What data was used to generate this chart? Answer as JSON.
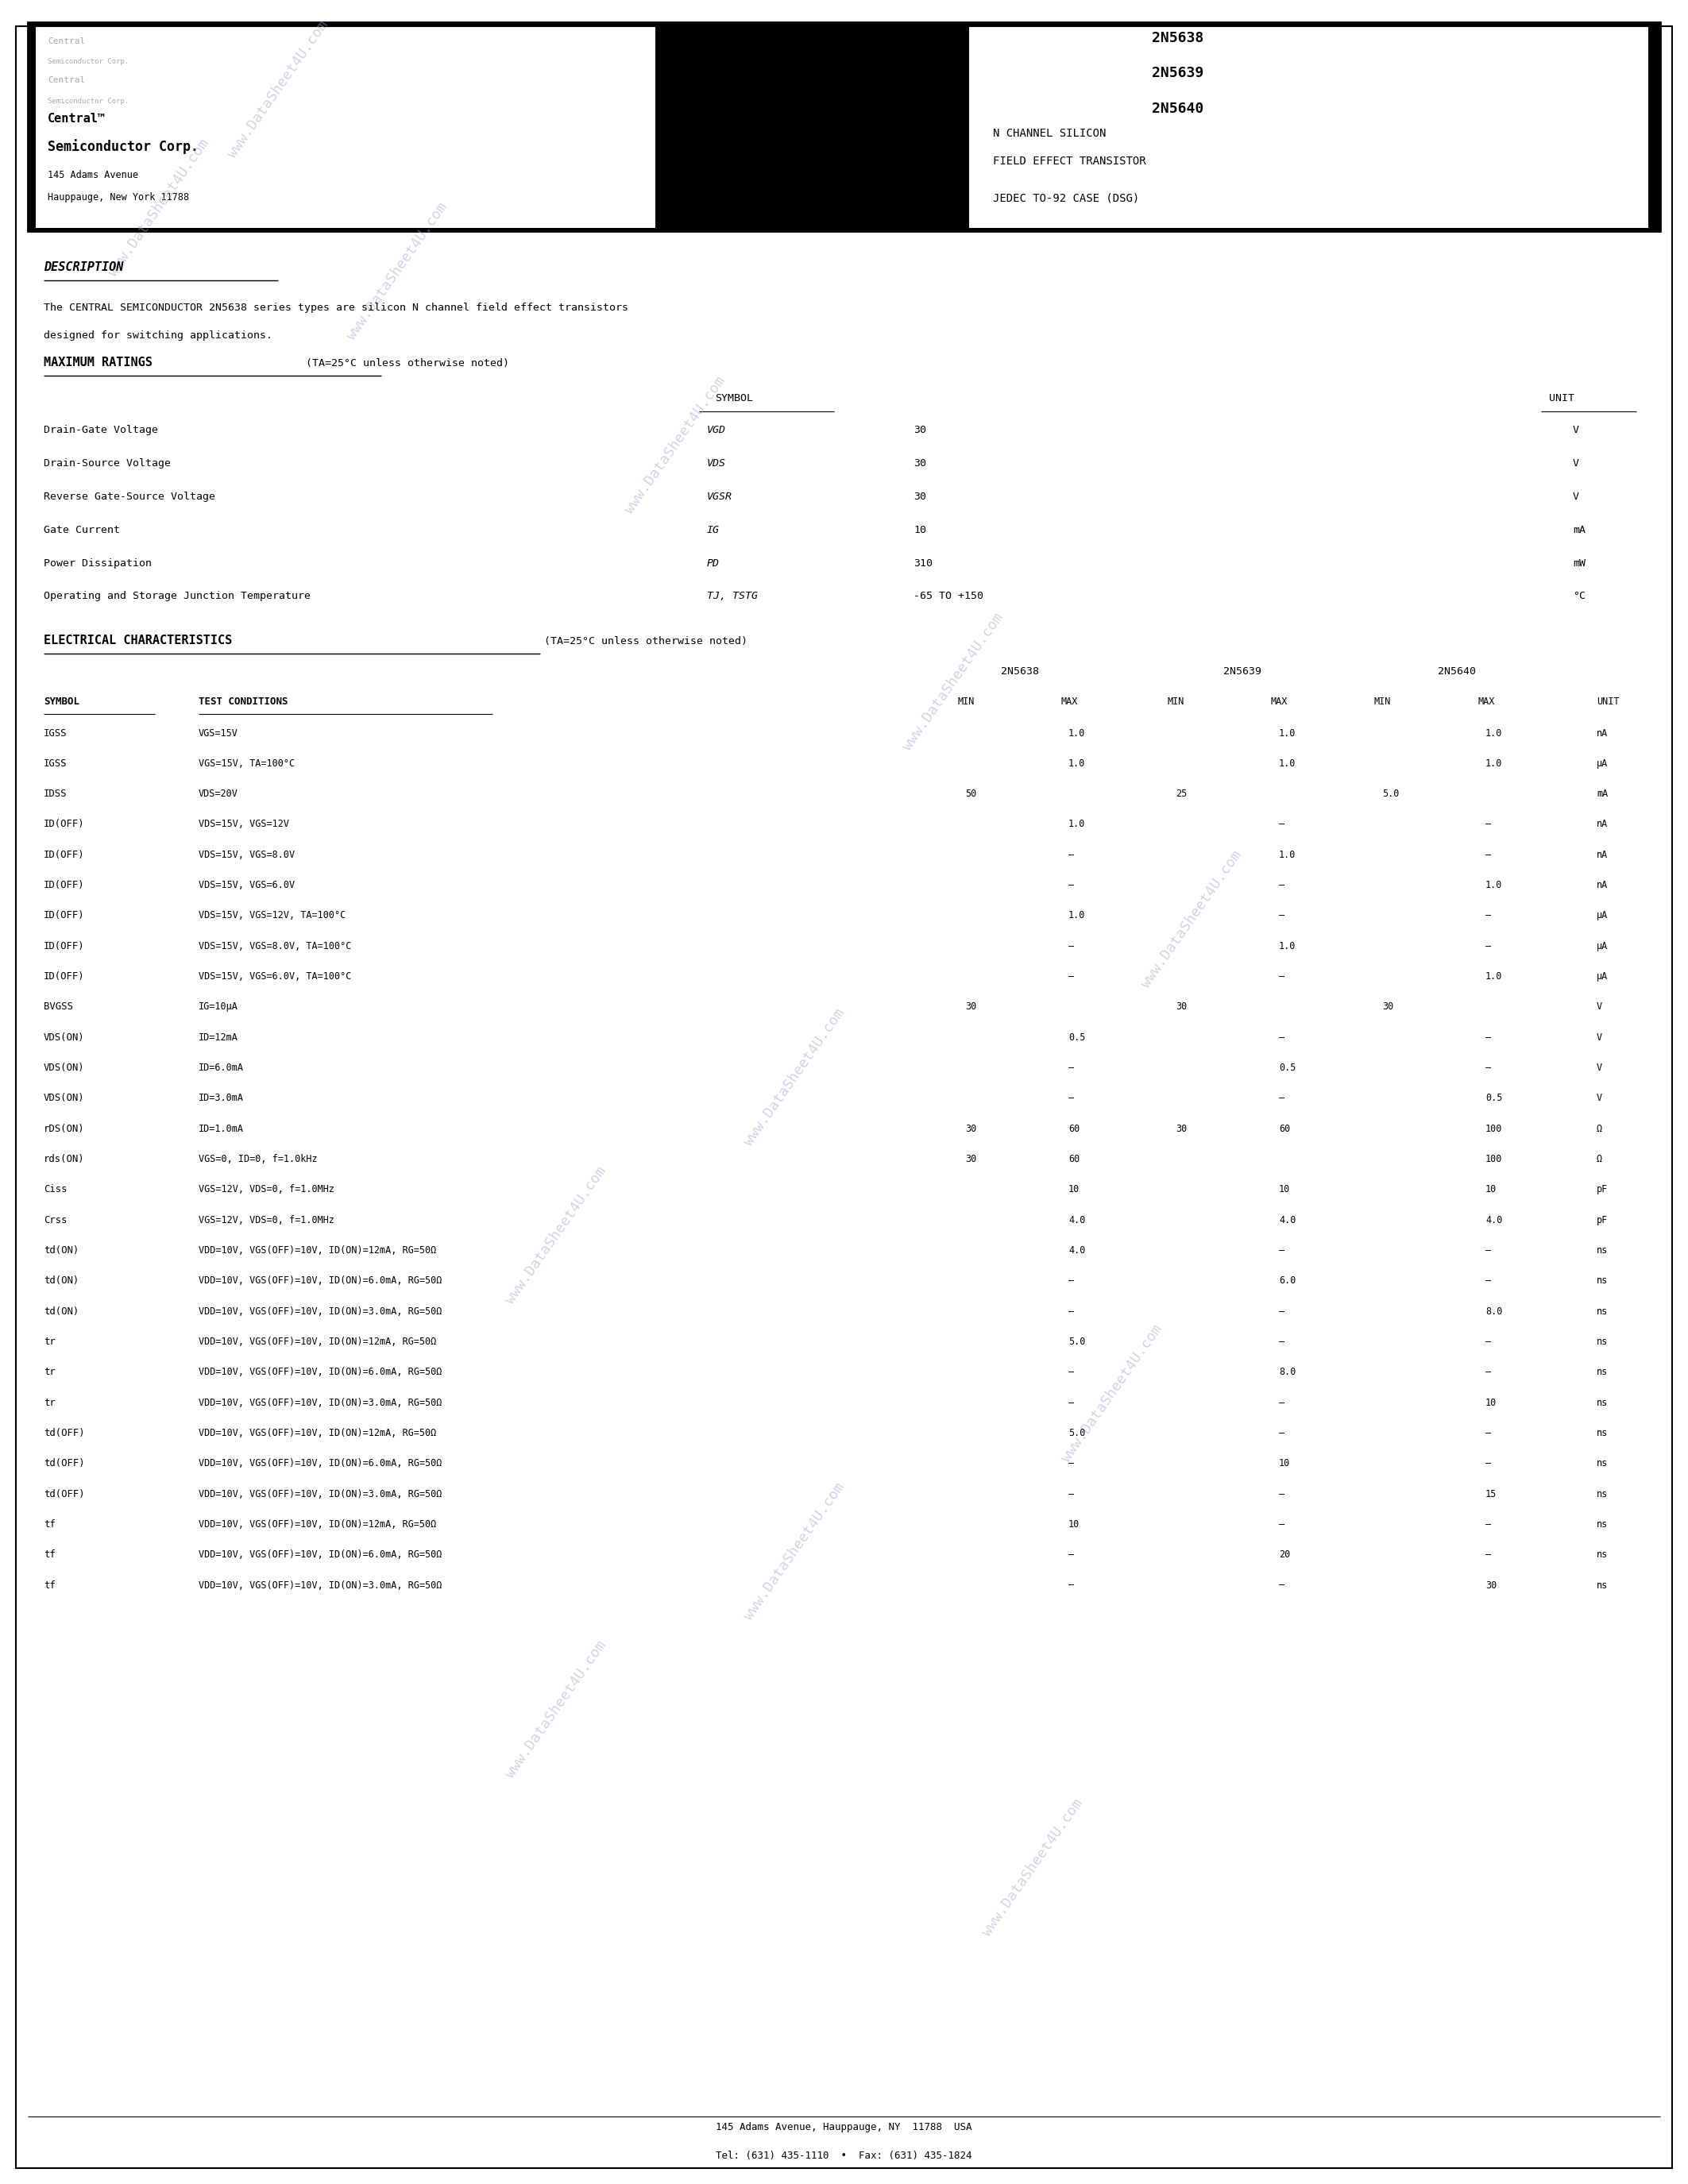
{
  "page_bg": "#ffffff",
  "header_bg": "#000000",
  "header_left_bg": "#ffffff",
  "header_right_bg": "#ffffff",
  "company_lines_faded": [
    "Central",
    "Semiconductor Corp.",
    "Central",
    "Semiconductor Corp."
  ],
  "company_bold1": "Central™",
  "company_bold2": "Semiconductor Corp.",
  "address1": "145 Adams Avenue",
  "address2": "Hauppauge, New York 11788",
  "part_numbers": [
    "2N5638",
    "2N5639",
    "2N5640"
  ],
  "device_type1": "N CHANNEL SILICON",
  "device_type2": "FIELD EFFECT TRANSISTOR",
  "package": "JEDEC TO-92 CASE (DSG)",
  "watermark_text": "www.DataSheet4U.com",
  "section1_title": "DESCRIPTION",
  "description_text": "The CENTRAL SEMICONDUCTOR 2N5638 series types are silicon N channel field effect transistors\ndesigned for switching applications.",
  "section2_title": "MAXIMUM RATINGS",
  "section2_subtitle": "(TA=25°C unless otherwise noted)",
  "max_ratings_headers": [
    "SYMBOL",
    "UNIT"
  ],
  "max_ratings": [
    {
      "param": "Drain-Gate Voltage",
      "symbol": "VGD",
      "value": "30",
      "unit": "V"
    },
    {
      "param": "Drain-Source Voltage",
      "symbol": "VDS",
      "value": "30",
      "unit": "V"
    },
    {
      "param": "Reverse Gate-Source Voltage",
      "symbol": "VGSR",
      "value": "30",
      "unit": "V"
    },
    {
      "param": "Gate Current",
      "symbol": "IG",
      "value": "10",
      "unit": "mA"
    },
    {
      "param": "Power Dissipation",
      "symbol": "PD",
      "value": "310",
      "unit": "mW"
    },
    {
      "param": "Operating and Storage Junction Temperature",
      "symbol": "TJ, TSTG",
      "value": "-65 TO +150",
      "unit": "°C"
    }
  ],
  "section3_title": "ELECTRICAL CHARACTERISTICS",
  "section3_subtitle": "(TA=25°C unless otherwise noted)",
  "ec_col_headers": [
    "2N5638",
    "2N5639",
    "2N5640"
  ],
  "ec_subheaders": [
    "MIN",
    "MAX",
    "MIN",
    "MAX",
    "MIN",
    "MAX",
    "UNIT"
  ],
  "ec_rows": [
    {
      "sym": "IGSS",
      "cond": "VGS=15V",
      "v": [
        "",
        "1.0",
        "",
        "1.0",
        "",
        "1.0",
        "nA"
      ]
    },
    {
      "sym": "IGSS",
      "cond": "VGS=15V, TA=100°C",
      "v": [
        "",
        "1.0",
        "",
        "1.0",
        "",
        "1.0",
        "μA"
      ]
    },
    {
      "sym": "IDSS",
      "cond": "VDS=20V",
      "v": [
        "50",
        "",
        "25",
        "",
        "5.0",
        "",
        "mA"
      ]
    },
    {
      "sym": "ID(OFF)",
      "cond": "VDS=15V, VGS=12V",
      "v": [
        "",
        "1.0",
        "",
        "–",
        "",
        "–",
        "nA"
      ]
    },
    {
      "sym": "ID(OFF)",
      "cond": "VDS=15V, VGS=8.0V",
      "v": [
        "",
        "–",
        "",
        "1.0",
        "",
        "–",
        "nA"
      ]
    },
    {
      "sym": "ID(OFF)",
      "cond": "VDS=15V, VGS=6.0V",
      "v": [
        "",
        "–",
        "",
        "–",
        "",
        "1.0",
        "nA"
      ]
    },
    {
      "sym": "ID(OFF)",
      "cond": "VDS=15V, VGS=12V, TA=100°C",
      "v": [
        "",
        "1.0",
        "",
        "–",
        "",
        "–",
        "μA"
      ]
    },
    {
      "sym": "ID(OFF)",
      "cond": "VDS=15V, VGS=8.0V, TA=100°C",
      "v": [
        "",
        "–",
        "",
        "1.0",
        "",
        "–",
        "μA"
      ]
    },
    {
      "sym": "ID(OFF)",
      "cond": "VDS=15V, VGS=6.0V, TA=100°C",
      "v": [
        "",
        "–",
        "",
        "–",
        "",
        "1.0",
        "μA"
      ]
    },
    {
      "sym": "BVGSS",
      "cond": "IG=10μA",
      "v": [
        "30",
        "",
        "30",
        "",
        "30",
        "",
        "V"
      ]
    },
    {
      "sym": "VDS(ON)",
      "cond": "ID=12mA",
      "v": [
        "",
        "0.5",
        "",
        "–",
        "",
        "–",
        "V"
      ]
    },
    {
      "sym": "VDS(ON)",
      "cond": "ID=6.0mA",
      "v": [
        "",
        "–",
        "",
        "0.5",
        "",
        "–",
        "V"
      ]
    },
    {
      "sym": "VDS(ON)",
      "cond": "ID=3.0mA",
      "v": [
        "",
        "–",
        "",
        "–",
        "",
        "0.5",
        "V"
      ]
    },
    {
      "sym": "rDS(ON)",
      "cond": "ID=1.0mA",
      "v": [
        "30",
        "60",
        "30",
        "60",
        "",
        "100",
        "Ω"
      ]
    },
    {
      "sym": "rds(ON)",
      "cond": "VGS=0, ID=0, f=1.0kHz",
      "v": [
        "30",
        "60",
        "",
        "",
        "",
        "100",
        "Ω"
      ]
    },
    {
      "sym": "Ciss",
      "cond": "VGS=12V, VDS=0, f=1.0MHz",
      "v": [
        "",
        "10",
        "",
        "10",
        "",
        "10",
        "pF"
      ]
    },
    {
      "sym": "Crss",
      "cond": "VGS=12V, VDS=0, f=1.0MHz",
      "v": [
        "",
        "4.0",
        "",
        "4.0",
        "",
        "4.0",
        "pF"
      ]
    },
    {
      "sym": "td(ON)",
      "cond": "VDD=10V, VGS(OFF)=10V, ID(ON)=12mA, RG=50Ω",
      "v": [
        "",
        "4.0",
        "",
        "–",
        "",
        "–",
        "ns"
      ]
    },
    {
      "sym": "td(ON)",
      "cond": "VDD=10V, VGS(OFF)=10V, ID(ON)=6.0mA, RG=50Ω",
      "v": [
        "",
        "–",
        "",
        "6.0",
        "",
        "–",
        "ns"
      ]
    },
    {
      "sym": "td(ON)",
      "cond": "VDD=10V, VGS(OFF)=10V, ID(ON)=3.0mA, RG=50Ω",
      "v": [
        "",
        "–",
        "",
        "–",
        "",
        "8.0",
        "ns"
      ]
    },
    {
      "sym": "tr",
      "cond": "VDD=10V, VGS(OFF)=10V, ID(ON)=12mA, RG=50Ω",
      "v": [
        "",
        "5.0",
        "",
        "–",
        "",
        "–",
        "ns"
      ]
    },
    {
      "sym": "tr",
      "cond": "VDD=10V, VGS(OFF)=10V, ID(ON)=6.0mA, RG=50Ω",
      "v": [
        "",
        "–",
        "",
        "8.0",
        "",
        "–",
        "ns"
      ]
    },
    {
      "sym": "tr",
      "cond": "VDD=10V, VGS(OFF)=10V, ID(ON)=3.0mA, RG=50Ω",
      "v": [
        "",
        "–",
        "",
        "–",
        "",
        "10",
        "ns"
      ]
    },
    {
      "sym": "td(OFF)",
      "cond": "VDD=10V, VGS(OFF)=10V, ID(ON)=12mA, RG=50Ω",
      "v": [
        "",
        "5.0",
        "",
        "–",
        "",
        "–",
        "ns"
      ]
    },
    {
      "sym": "td(OFF)",
      "cond": "VDD=10V, VGS(OFF)=10V, ID(ON)=6.0mA, RG=50Ω",
      "v": [
        "",
        "–",
        "",
        "10",
        "",
        "–",
        "ns"
      ]
    },
    {
      "sym": "td(OFF)",
      "cond": "VDD=10V, VGS(OFF)=10V, ID(ON)=3.0mA, RG=50Ω",
      "v": [
        "",
        "–",
        "",
        "–",
        "",
        "15",
        "ns"
      ]
    },
    {
      "sym": "tf",
      "cond": "VDD=10V, VGS(OFF)=10V, ID(ON)=12mA, RG=50Ω",
      "v": [
        "",
        "10",
        "",
        "–",
        "",
        "–",
        "ns"
      ]
    },
    {
      "sym": "tf",
      "cond": "VDD=10V, VGS(OFF)=10V, ID(ON)=6.0mA, RG=50Ω",
      "v": [
        "",
        "–",
        "",
        "20",
        "",
        "–",
        "ns"
      ]
    },
    {
      "sym": "tf",
      "cond": "VDD=10V, VGS(OFF)=10V, ID(ON)=3.0mA, RG=50Ω",
      "v": [
        "",
        "–",
        "",
        "–",
        "",
        "30",
        "ns"
      ]
    }
  ],
  "footer_line1": "145 Adams Avenue, Hauppauge, NY  11788  USA",
  "footer_line2": "Tel: (631) 435-1110  •  Fax: (631) 435-1824"
}
